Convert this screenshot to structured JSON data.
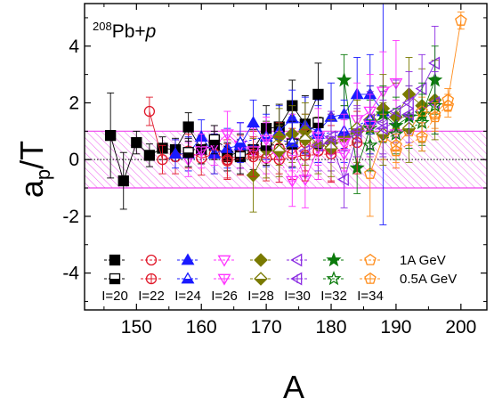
{
  "chart_data": {
    "type": "scatter",
    "title_parts": {
      "mass": "208",
      "rest": "Pb+",
      "ital": "p"
    },
    "xlabel": "A",
    "ylabel_parts": {
      "a": "a",
      "sub": "p",
      "rest": "/T"
    },
    "xlim": [
      142,
      204
    ],
    "ylim": [
      -5.3,
      5.5
    ],
    "xticks": [
      150,
      160,
      170,
      180,
      190,
      200
    ],
    "yticks": [
      -4,
      -2,
      0,
      2,
      4
    ],
    "reference_line": 0,
    "band": {
      "low": -1,
      "high": 1
    },
    "legend": {
      "energy_labels": [
        "1A GeV",
        "0.5A GeV"
      ],
      "isotope_labels": [
        "I=20",
        "I=22",
        "I=24",
        "I=26",
        "I=28",
        "I=30",
        "I=32",
        "I=34"
      ]
    },
    "series": [
      {
        "isotope": 20,
        "marker": "square",
        "color": "#000000",
        "energy": "1A GeV",
        "points": [
          [
            146,
            0.85,
            1.5
          ],
          [
            148,
            -0.75,
            1.0
          ],
          [
            150,
            0.6,
            0.4
          ],
          [
            152,
            0.15,
            0.4
          ],
          [
            154,
            0.4,
            0.4
          ],
          [
            156,
            0.35,
            0.4
          ],
          [
            158,
            1.15,
            0.5
          ],
          [
            160,
            0.35,
            0.5
          ],
          [
            162,
            0.5,
            0.5
          ],
          [
            164,
            0.1,
            0.5
          ],
          [
            166,
            0.3,
            0.6
          ],
          [
            168,
            0.35,
            0.7
          ],
          [
            170,
            1.1,
            0.8
          ],
          [
            172,
            1.15,
            0.8
          ],
          [
            174,
            1.9,
            0.9
          ],
          [
            176,
            1.25,
            1.0
          ],
          [
            178,
            2.3,
            1.1
          ]
        ]
      },
      {
        "isotope": 22,
        "marker": "circle",
        "color": "#e0182a",
        "energy": "1A GeV",
        "points": [
          [
            152,
            1.7,
            0.5
          ],
          [
            154,
            0.0,
            0.5
          ],
          [
            156,
            0.1,
            0.6
          ],
          [
            158,
            0.3,
            0.6
          ],
          [
            160,
            0.05,
            0.6
          ],
          [
            162,
            0.2,
            0.7
          ],
          [
            164,
            0.0,
            0.7
          ],
          [
            166,
            0.15,
            0.7
          ],
          [
            168,
            0.2,
            0.8
          ],
          [
            170,
            0.05,
            0.8
          ],
          [
            172,
            0.4,
            0.9
          ],
          [
            174,
            0.2,
            0.9
          ],
          [
            176,
            0.6,
            1.0
          ],
          [
            178,
            0.3,
            1.0
          ],
          [
            180,
            0.35,
            1.1
          ]
        ]
      },
      {
        "isotope": 24,
        "marker": "triangle-up",
        "color": "#1a1aff",
        "energy": "1A GeV",
        "points": [
          [
            156,
            0.2,
            0.5
          ],
          [
            158,
            0.2,
            0.6
          ],
          [
            160,
            0.8,
            0.6
          ],
          [
            162,
            0.2,
            0.7
          ],
          [
            164,
            0.4,
            0.7
          ],
          [
            166,
            0.5,
            0.8
          ],
          [
            168,
            1.3,
            0.8
          ],
          [
            170,
            0.55,
            0.8
          ],
          [
            172,
            1.0,
            0.9
          ],
          [
            174,
            1.45,
            1.0
          ],
          [
            176,
            1.2,
            1.0
          ],
          [
            178,
            1.0,
            1.1
          ],
          [
            180,
            1.5,
            1.2
          ],
          [
            182,
            1.6,
            1.2
          ],
          [
            184,
            2.3,
            1.3
          ],
          [
            186,
            2.3,
            1.4
          ],
          [
            188,
            1.7,
            4.0
          ]
        ]
      },
      {
        "isotope": 26,
        "marker": "triangle-down",
        "color": "#ff33ff",
        "energy": "1A GeV",
        "points": [
          [
            158,
            0.0,
            0.6
          ],
          [
            160,
            0.3,
            0.6
          ],
          [
            162,
            0.5,
            0.7
          ],
          [
            164,
            0.9,
            0.8
          ],
          [
            166,
            0.5,
            0.8
          ],
          [
            168,
            0.3,
            0.8
          ],
          [
            170,
            0.4,
            0.9
          ],
          [
            172,
            0.1,
            0.9
          ],
          [
            174,
            0.6,
            1.0
          ],
          [
            176,
            -0.7,
            1.0
          ],
          [
            178,
            0.4,
            1.1
          ],
          [
            180,
            0.3,
            1.1
          ],
          [
            182,
            0.2,
            1.2
          ],
          [
            184,
            1.4,
            1.3
          ],
          [
            186,
            1.7,
            1.3
          ],
          [
            188,
            2.4,
            1.4
          ],
          [
            190,
            2.7,
            1.5
          ]
        ]
      },
      {
        "isotope": 28,
        "marker": "diamond",
        "color": "#7a7a00",
        "energy": "1A GeV",
        "points": [
          [
            168,
            -0.55,
            1.3
          ],
          [
            170,
            0.35,
            1.0
          ],
          [
            172,
            0.8,
            1.0
          ],
          [
            174,
            0.9,
            1.0
          ],
          [
            176,
            1.0,
            1.0
          ],
          [
            178,
            0.5,
            1.0
          ],
          [
            180,
            0.6,
            1.0
          ],
          [
            182,
            0.8,
            1.1
          ],
          [
            184,
            1.0,
            1.1
          ],
          [
            186,
            1.4,
            1.2
          ],
          [
            188,
            1.8,
            1.2
          ],
          [
            190,
            1.5,
            1.2
          ],
          [
            192,
            2.3,
            1.3
          ],
          [
            194,
            1.9,
            1.3
          ],
          [
            196,
            2.1,
            1.4
          ]
        ]
      },
      {
        "isotope": 30,
        "marker": "triangle-left",
        "color": "#8a2be2",
        "energy": "1A GeV",
        "points": [
          [
            176,
            0.3,
            0.9
          ],
          [
            178,
            0.5,
            0.9
          ],
          [
            180,
            0.6,
            1.0
          ],
          [
            182,
            -0.7,
            1.0
          ],
          [
            184,
            0.8,
            1.0
          ],
          [
            186,
            1.4,
            1.0
          ],
          [
            188,
            1.3,
            1.1
          ],
          [
            190,
            1.7,
            1.1
          ],
          [
            192,
            2.0,
            1.1
          ],
          [
            194,
            2.5,
            1.2
          ],
          [
            196,
            3.4,
            1.3
          ]
        ]
      },
      {
        "isotope": 32,
        "marker": "star",
        "color": "#0b7a0b",
        "energy": "1A GeV",
        "points": [
          [
            182,
            2.8,
            0.9
          ],
          [
            184,
            -0.3,
            0.9
          ],
          [
            186,
            1.1,
            1.0
          ],
          [
            188,
            1.6,
            1.0
          ],
          [
            190,
            1.2,
            1.0
          ],
          [
            192,
            1.5,
            1.1
          ],
          [
            194,
            1.6,
            1.1
          ],
          [
            196,
            2.8,
            1.2
          ]
        ]
      },
      {
        "isotope": 34,
        "marker": "pentagon",
        "color": "#ff8c1a",
        "energy": "1A GeV",
        "points": [
          [
            186,
            -0.5,
            1.5
          ],
          [
            188,
            0.8,
            0.8
          ],
          [
            190,
            0.5,
            0.6
          ],
          [
            192,
            1.0,
            0.5
          ],
          [
            194,
            1.7,
            0.5
          ],
          [
            196,
            1.6,
            0.5
          ],
          [
            198,
            2.1,
            0.4
          ],
          [
            200,
            4.9,
            0.3
          ]
        ]
      },
      {
        "isotope": 20,
        "marker": "square-half",
        "color": "#000000",
        "energy": "0.5A GeV",
        "points": [
          [
            158,
            0.25,
            0.5
          ],
          [
            162,
            0.7,
            0.5
          ],
          [
            166,
            0.1,
            0.6
          ],
          [
            170,
            0.5,
            0.7
          ],
          [
            174,
            0.55,
            0.8
          ],
          [
            178,
            1.3,
            0.9
          ]
        ]
      },
      {
        "isotope": 22,
        "marker": "circle-plus",
        "color": "#e0182a",
        "energy": "0.5A GeV",
        "points": [
          [
            164,
            -0.05,
            0.6
          ],
          [
            168,
            0.1,
            0.7
          ],
          [
            172,
            0.0,
            0.8
          ],
          [
            176,
            0.15,
            0.9
          ],
          [
            180,
            0.2,
            1.0
          ],
          [
            184,
            0.6,
            1.1
          ]
        ]
      },
      {
        "isotope": 24,
        "marker": "triangle-up-half",
        "color": "#1a1aff",
        "energy": "0.5A GeV",
        "points": [
          [
            166,
            0.6,
            0.7
          ],
          [
            170,
            0.8,
            0.8
          ],
          [
            174,
            0.6,
            0.9
          ],
          [
            178,
            0.9,
            1.0
          ],
          [
            182,
            1.0,
            1.1
          ],
          [
            186,
            1.4,
            1.2
          ]
        ]
      },
      {
        "isotope": 26,
        "marker": "triangle-down-plus",
        "color": "#ff33ff",
        "energy": "0.5A GeV",
        "points": [
          [
            170,
            0.7,
            0.8
          ],
          [
            174,
            -0.75,
            0.9
          ],
          [
            178,
            0.8,
            1.0
          ],
          [
            182,
            0.6,
            1.0
          ],
          [
            186,
            1.2,
            1.1
          ],
          [
            190,
            0.9,
            1.2
          ]
        ]
      },
      {
        "isotope": 28,
        "marker": "diamond-half",
        "color": "#7a7a00",
        "energy": "0.5A GeV",
        "points": [
          [
            172,
            0.3,
            0.9
          ],
          [
            176,
            0.7,
            0.9
          ],
          [
            180,
            0.4,
            1.0
          ],
          [
            184,
            1.1,
            1.0
          ],
          [
            188,
            0.9,
            1.1
          ],
          [
            192,
            1.1,
            1.2
          ]
        ]
      },
      {
        "isotope": 30,
        "marker": "triangle-left-plus",
        "color": "#8a2be2",
        "energy": "0.5A GeV",
        "points": [
          [
            180,
            0.8,
            0.9
          ],
          [
            184,
            1.0,
            0.9
          ],
          [
            188,
            1.1,
            1.0
          ],
          [
            192,
            1.6,
            1.0
          ],
          [
            196,
            2.0,
            1.1
          ]
        ]
      },
      {
        "isotope": 32,
        "marker": "star-open",
        "color": "#0b7a0b",
        "energy": "0.5A GeV",
        "points": [
          [
            186,
            0.5,
            0.9
          ],
          [
            190,
            0.9,
            0.9
          ],
          [
            194,
            1.3,
            1.0
          ],
          [
            196,
            1.9,
            1.0
          ]
        ]
      },
      {
        "isotope": 34,
        "marker": "pentagon-plus",
        "color": "#ff8c1a",
        "energy": "0.5A GeV",
        "points": [
          [
            190,
            0.3,
            0.6
          ],
          [
            194,
            0.8,
            0.5
          ],
          [
            196,
            1.5,
            0.5
          ],
          [
            198,
            1.9,
            0.4
          ]
        ]
      }
    ],
    "legend_markers": {
      "row1": [
        "square",
        "circle",
        "triangle-up",
        "triangle-down",
        "diamond",
        "triangle-left",
        "star",
        "pentagon"
      ],
      "row2": [
        "square-half",
        "circle-plus",
        "triangle-up-half",
        "triangle-down-plus",
        "diamond-half",
        "triangle-left-plus",
        "star-open",
        "pentagon-plus"
      ],
      "colors": [
        "#000000",
        "#e0182a",
        "#1a1aff",
        "#ff33ff",
        "#7a7a00",
        "#8a2be2",
        "#0b7a0b",
        "#ff8c1a"
      ]
    },
    "colors": {
      "band_stroke": "#ee44ee",
      "band_hatch": "#ee66ee"
    }
  }
}
